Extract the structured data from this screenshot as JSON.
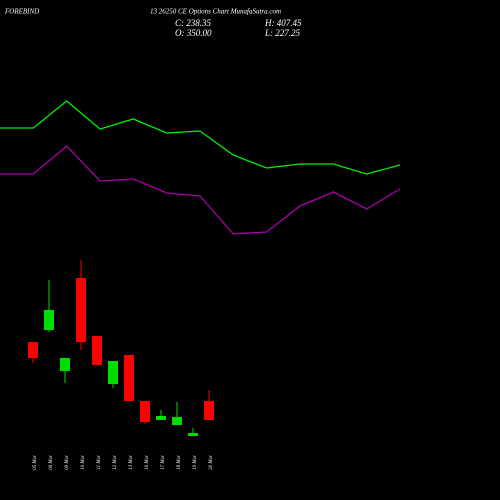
{
  "chart_data": [
    {
      "type": "candlestick",
      "title": "FOREBIND",
      "subtitle": "13 26250 CE Options Chart MunafaSutra.com",
      "annotations": [
        "C: 238.35",
        "H: 407.45",
        "O: 350.00",
        "L: 227.25"
      ],
      "categories": [
        "05 Mar",
        "06 Mar",
        "09 Mar",
        "10 Mar",
        "11 Mar",
        "12 Mar",
        "13 Mar",
        "16 Mar",
        "17 Mar",
        "18 Mar",
        "19 Mar",
        "20 Mar"
      ],
      "open": [
        318,
        330,
        289,
        382,
        324,
        276,
        305,
        259,
        240,
        235,
        224,
        259
      ],
      "high": [
        318,
        380,
        302,
        400,
        324,
        299,
        305,
        259,
        250,
        258,
        232,
        270
      ],
      "low": [
        297,
        328,
        277,
        310,
        295,
        272,
        259,
        236,
        240,
        235,
        224,
        240
      ],
      "close": [
        302,
        350,
        302,
        318,
        295,
        299,
        259,
        238,
        244,
        243,
        227,
        240
      ],
      "up_color": "#00dd00",
      "down_color": "#ff0000",
      "ylim": [
        220,
        410
      ]
    },
    {
      "type": "line",
      "series": [
        {
          "color": "#00ee00",
          "values": [
            122,
            122,
            149,
            121,
            131,
            117,
            119,
            95,
            82,
            86,
            86,
            76,
            85
          ]
        },
        {
          "color": "#aa00aa",
          "values": [
            76,
            76,
            104,
            69,
            71,
            57,
            54,
            16,
            18,
            44,
            58,
            41,
            61
          ]
        }
      ],
      "ylim": [
        0,
        170
      ]
    }
  ]
}
